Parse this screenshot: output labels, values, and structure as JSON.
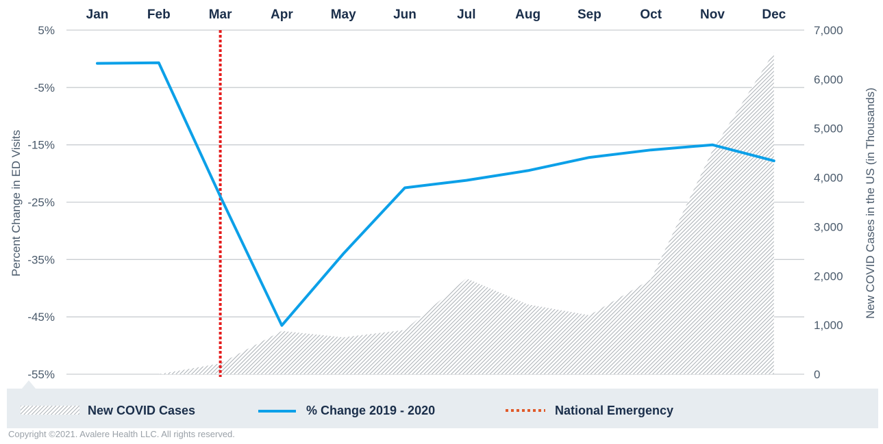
{
  "chart_data": {
    "type": "line",
    "categories": [
      "Jan",
      "Feb",
      "Mar",
      "Apr",
      "May",
      "Jun",
      "Jul",
      "Aug",
      "Sep",
      "Oct",
      "Nov",
      "Dec"
    ],
    "left_axis": {
      "label": "Percent Change in ED Visits",
      "range": [
        -55,
        5
      ],
      "ticks": [
        5,
        -5,
        -15,
        -25,
        -35,
        -45,
        -55
      ],
      "tick_labels": [
        "5%",
        "-5%",
        "-15%",
        "-25%",
        "-35%",
        "-45%",
        "-55%"
      ]
    },
    "right_axis": {
      "label": "New COVID Cases in the US (in Thousands)",
      "range": [
        0,
        7000
      ],
      "ticks": [
        7000,
        6000,
        5000,
        4000,
        3000,
        2000,
        1000,
        0
      ],
      "tick_labels": [
        "7,000",
        "6,000",
        "5,000",
        "4,000",
        "3,000",
        "2,000",
        "1,000",
        "0"
      ]
    },
    "series": [
      {
        "name": "New COVID Cases",
        "type": "area",
        "axis": "right",
        "color": "#9ea5ab",
        "values": [
          0,
          0,
          220,
          880,
          750,
          900,
          1950,
          1420,
          1200,
          1930,
          4550,
          6550
        ]
      },
      {
        "name": "% Change 2019 - 2020",
        "type": "line",
        "axis": "left",
        "color": "#0ca0e8",
        "values": [
          -0.8,
          -0.7,
          -24,
          -46.5,
          -34,
          -22.5,
          -21.2,
          -19.5,
          -17.2,
          -15.9,
          -15,
          -17.8
        ]
      }
    ],
    "markers": [
      {
        "name": "National Emergency",
        "category": "Mar",
        "style": "dotted",
        "color": "#e51c1c"
      }
    ],
    "grid": true,
    "legend_position": "bottom"
  },
  "legend": {
    "items": [
      {
        "label": "New COVID Cases"
      },
      {
        "label": "% Change 2019 - 2020"
      },
      {
        "label": "National Emergency"
      }
    ]
  },
  "footer": {
    "copyright": "Copyright ©2021. Avalere Health LLC. All rights reserved."
  },
  "colors": {
    "axis_text": "#1a2e4a",
    "grid": "#c9cdd1",
    "legend_bg": "#e7ecf0"
  }
}
